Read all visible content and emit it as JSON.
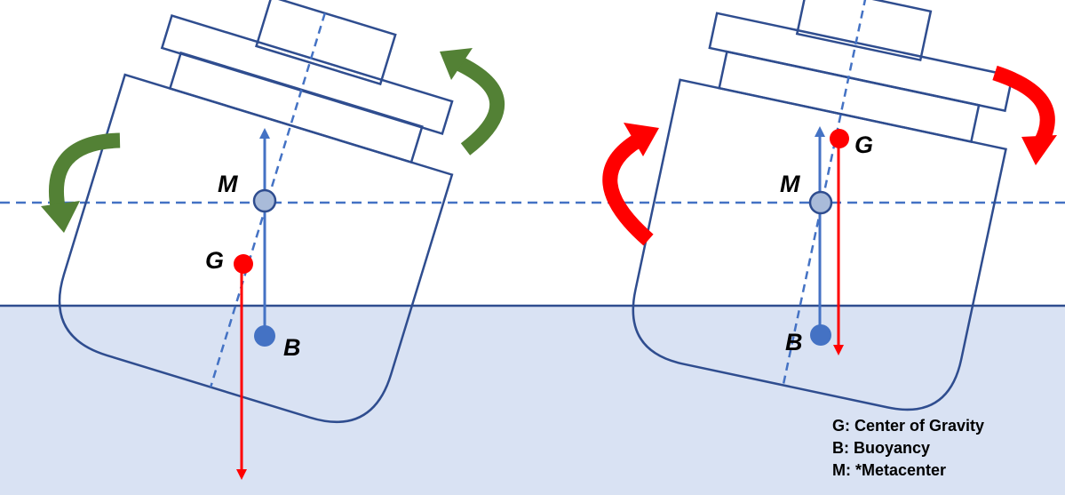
{
  "colors": {
    "water": "#d9e2f3",
    "hull_stroke": "#2f4d8f",
    "axis_dashed": "#4472c4",
    "buoyancy": "#4472c4",
    "gravity": "#ff0000",
    "stable_moment": "#538135",
    "unstable_moment": "#ff0000",
    "metacenter_fill": "#a9bbd9"
  },
  "stable_ship": {
    "metacenter_label": "M",
    "gravity_label": "G",
    "buoyancy_label": "B"
  },
  "unstable_ship": {
    "metacenter_label": "M",
    "gravity_label": "G",
    "buoyancy_label": "B"
  },
  "legend": [
    {
      "label": "G:  Center of Gravity"
    },
    {
      "label": "B:  Buoyancy"
    },
    {
      "label": "M: *Metacenter"
    }
  ]
}
